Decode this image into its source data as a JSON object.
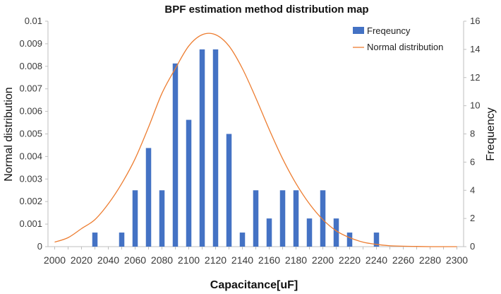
{
  "chart_data": {
    "type": "bar",
    "title": "BPF estimation method distribution map",
    "xlabel": "Capacitance[uF]",
    "ylabel_left": "Normal distribution",
    "ylabel_right": "Frequency",
    "x_ticks": [
      "2000",
      "2020",
      "2040",
      "2060",
      "2080",
      "2100",
      "2120",
      "2140",
      "2160",
      "2180",
      "2200",
      "2220",
      "2240",
      "2260",
      "2280",
      "2300"
    ],
    "y_left_ticks": [
      "0",
      "0.001",
      "0.002",
      "0.003",
      "0.004",
      "0.005",
      "0.006",
      "0.007",
      "0.008",
      "0.009",
      "0.01"
    ],
    "y_right_ticks": [
      "0",
      "2",
      "4",
      "6",
      "8",
      "10",
      "12",
      "14",
      "16"
    ],
    "xlim": [
      1995,
      2305
    ],
    "ylim_left": [
      0,
      0.01
    ],
    "ylim_right": [
      0,
      16
    ],
    "grid": false,
    "legend_position": "top-right",
    "colors": {
      "bars": "#4472C4",
      "line": "#ED7D31"
    },
    "series": [
      {
        "name": "Freqeuncy",
        "type": "bar",
        "axis": "right",
        "x": [
          2030,
          2050,
          2060,
          2070,
          2080,
          2090,
          2100,
          2110,
          2120,
          2130,
          2140,
          2150,
          2160,
          2170,
          2180,
          2190,
          2200,
          2210,
          2220,
          2240
        ],
        "values": [
          1,
          1,
          4,
          7,
          4,
          13,
          9,
          14,
          14,
          8,
          1,
          4,
          2,
          4,
          4,
          2,
          4,
          2,
          1,
          1
        ]
      },
      {
        "name": "Normal distribution",
        "type": "line",
        "axis": "left",
        "x": [
          2000,
          2010,
          2020,
          2030,
          2040,
          2050,
          2060,
          2070,
          2080,
          2090,
          2100,
          2110,
          2120,
          2130,
          2140,
          2150,
          2160,
          2170,
          2180,
          2190,
          2200,
          2210,
          2220,
          2230,
          2240,
          2250,
          2260,
          2270,
          2280,
          2290,
          2300
        ],
        "values": [
          0.0002,
          0.0004,
          0.0008,
          0.0012,
          0.0019,
          0.0028,
          0.0039,
          0.0053,
          0.0068,
          0.0079,
          0.0089,
          0.0094,
          0.0094,
          0.0089,
          0.0079,
          0.0066,
          0.0052,
          0.0039,
          0.0028,
          0.0019,
          0.0012,
          0.0007,
          0.0004,
          0.0002,
          0.0001,
          4e-05,
          2e-05,
          1e-05,
          0,
          0,
          0
        ]
      }
    ]
  }
}
